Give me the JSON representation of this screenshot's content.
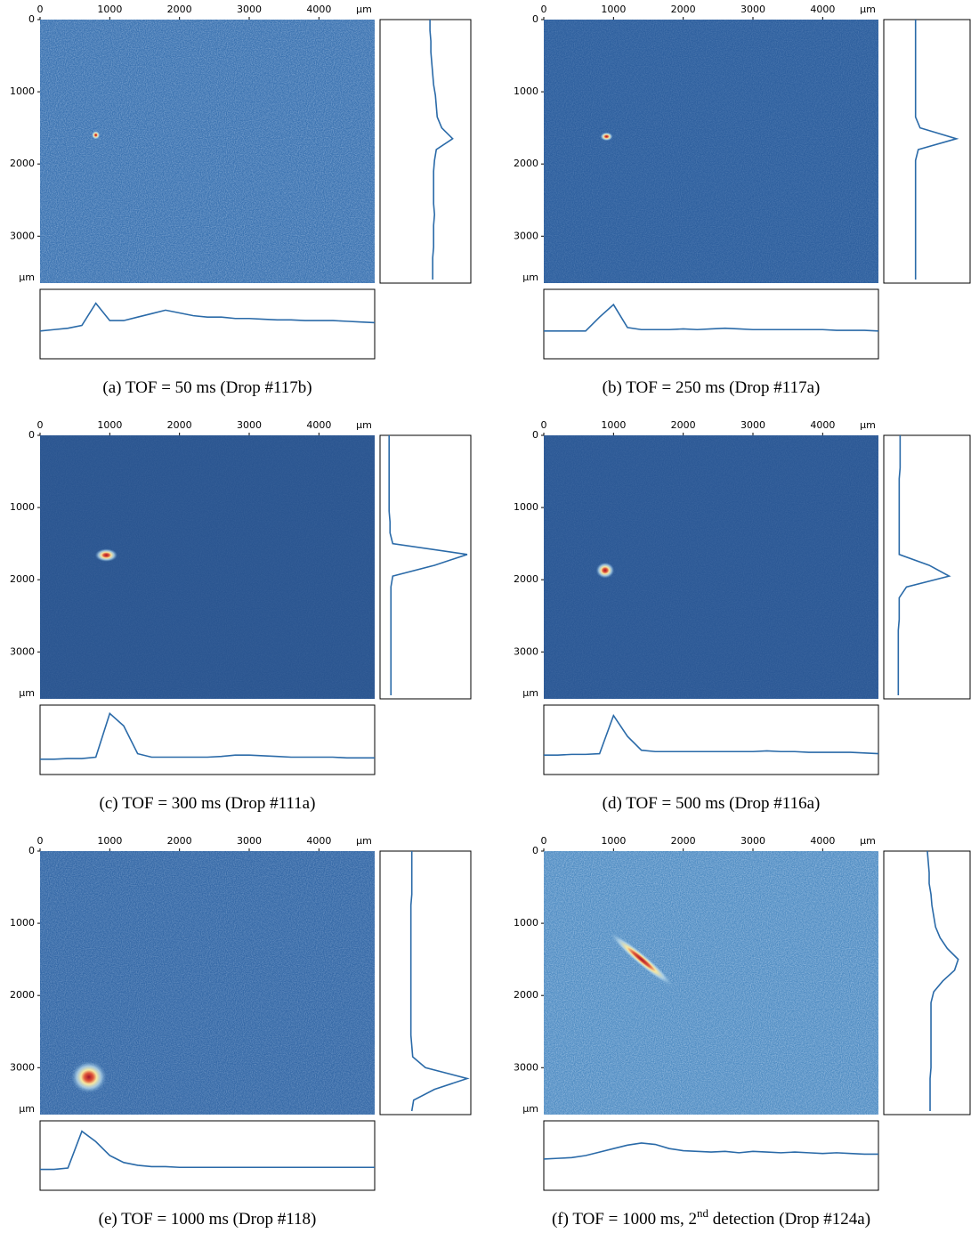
{
  "chart_data": [
    {
      "type": "image-profile",
      "caption": "(a) TOF = 50 ms (Drop #117b)",
      "background": "#3a72b0",
      "texture": 0.45,
      "spot": {
        "x": 800,
        "y": 1600,
        "rx": 60,
        "ry": 60,
        "angle": 0
      },
      "row_profile": {
        "x": [
          0,
          200,
          400,
          600,
          800,
          1000,
          1200,
          1400,
          1600,
          1800,
          2000,
          2200,
          2400,
          2600,
          2800,
          3000,
          3200,
          3400,
          3600,
          3800,
          4000,
          4200,
          4400,
          4600,
          4800
        ],
        "values": [
          40,
          42,
          44,
          48,
          80,
          55,
          55,
          60,
          65,
          70,
          66,
          62,
          60,
          60,
          58,
          58,
          57,
          56,
          56,
          55,
          55,
          55,
          54,
          53,
          52
        ]
      },
      "col_profile": {
        "y": [
          0,
          150,
          300,
          450,
          600,
          750,
          900,
          1050,
          1200,
          1350,
          1500,
          1650,
          1800,
          1950,
          2100,
          2250,
          2400,
          2550,
          2700,
          2850,
          3000,
          3150,
          3300,
          3450,
          3600
        ],
        "values": [
          55,
          55,
          56,
          56,
          57,
          58,
          59,
          61,
          62,
          63,
          68,
          80,
          62,
          60,
          59,
          59,
          59,
          59,
          60,
          59,
          59,
          59,
          58,
          58,
          58
        ]
      }
    },
    {
      "type": "image-profile",
      "caption": "(b) TOF = 250 ms (Drop #117a)",
      "background": "#2d5f9e",
      "texture": 0.2,
      "spot": {
        "x": 900,
        "y": 1620,
        "rx": 90,
        "ry": 60,
        "angle": 0
      },
      "row_profile": {
        "x": [
          0,
          200,
          400,
          600,
          800,
          1000,
          1200,
          1400,
          1600,
          1800,
          2000,
          2200,
          2400,
          2600,
          2800,
          3000,
          3200,
          3400,
          3600,
          3800,
          4000,
          4200,
          4400,
          4600,
          4800
        ],
        "values": [
          40,
          40,
          40,
          40,
          60,
          78,
          45,
          42,
          42,
          42,
          43,
          42,
          43,
          44,
          43,
          42,
          42,
          42,
          42,
          42,
          42,
          41,
          41,
          41,
          40
        ]
      },
      "col_profile": {
        "y": [
          0,
          150,
          300,
          450,
          600,
          750,
          900,
          1050,
          1200,
          1350,
          1500,
          1650,
          1800,
          1950,
          2100,
          2250,
          2400,
          2550,
          2700,
          2850,
          3000,
          3150,
          3300,
          3450,
          3600
        ],
        "values": [
          35,
          35,
          35,
          35,
          35,
          35,
          35,
          35,
          35,
          35,
          40,
          80,
          38,
          35,
          35,
          35,
          35,
          35,
          35,
          35,
          35,
          35,
          35,
          35,
          35
        ]
      }
    },
    {
      "type": "image-profile",
      "caption": "(c) TOF = 300 ms (Drop #111a)",
      "background": "#2a5590",
      "texture": 0.08,
      "spot": {
        "x": 950,
        "y": 1660,
        "rx": 160,
        "ry": 90,
        "angle": 0
      },
      "row_profile": {
        "x": [
          0,
          200,
          400,
          600,
          800,
          1000,
          1200,
          1400,
          1600,
          1800,
          2000,
          2200,
          2400,
          2600,
          2800,
          3000,
          3200,
          3400,
          3600,
          3800,
          4000,
          4200,
          4400,
          4600,
          4800
        ],
        "values": [
          22,
          22,
          23,
          23,
          25,
          88,
          70,
          30,
          25,
          25,
          25,
          25,
          25,
          26,
          28,
          28,
          27,
          26,
          25,
          25,
          25,
          25,
          24,
          24,
          24
        ]
      },
      "col_profile": {
        "y": [
          0,
          150,
          300,
          450,
          600,
          750,
          900,
          1050,
          1200,
          1350,
          1500,
          1650,
          1800,
          1950,
          2100,
          2250,
          2400,
          2550,
          2700,
          2850,
          3000,
          3150,
          3300,
          3450,
          3600
        ],
        "values": [
          10,
          10,
          10,
          10,
          10,
          10,
          10,
          10,
          11,
          11,
          14,
          96,
          60,
          14,
          12,
          12,
          12,
          12,
          12,
          12,
          12,
          12,
          12,
          12,
          12
        ]
      }
    },
    {
      "type": "image-profile",
      "caption": "(d) TOF = 500 ms (Drop #116a)",
      "background": "#2b5895",
      "texture": 0.1,
      "spot": {
        "x": 880,
        "y": 1870,
        "rx": 130,
        "ry": 110,
        "angle": 0
      },
      "row_profile": {
        "x": [
          0,
          200,
          400,
          600,
          800,
          1000,
          1200,
          1400,
          1600,
          1800,
          2000,
          2200,
          2400,
          2600,
          2800,
          3000,
          3200,
          3400,
          3600,
          3800,
          4000,
          4200,
          4400,
          4600,
          4800
        ],
        "values": [
          28,
          28,
          29,
          29,
          30,
          85,
          55,
          35,
          33,
          33,
          33,
          33,
          33,
          33,
          33,
          33,
          34,
          33,
          33,
          32,
          32,
          32,
          32,
          31,
          30
        ]
      },
      "col_profile": {
        "y": [
          0,
          150,
          300,
          450,
          600,
          750,
          900,
          1050,
          1200,
          1350,
          1500,
          1650,
          1800,
          1950,
          2100,
          2250,
          2400,
          2550,
          2700,
          2850,
          3000,
          3150,
          3300,
          3450,
          3600
        ],
        "values": [
          18,
          18,
          18,
          18,
          17,
          17,
          17,
          17,
          17,
          17,
          17,
          17,
          50,
          72,
          25,
          17,
          17,
          17,
          16,
          16,
          16,
          16,
          16,
          16,
          16
        ]
      }
    },
    {
      "type": "image-profile",
      "caption": "(e) TOF = 1000 ms (Drop #118)",
      "background": "#3468a6",
      "texture": 0.35,
      "spot": {
        "x": 700,
        "y": 3130,
        "rx": 250,
        "ry": 220,
        "angle": 0
      },
      "row_profile": {
        "x": [
          0,
          200,
          400,
          600,
          800,
          1000,
          1200,
          1400,
          1600,
          1800,
          2000,
          2200,
          2400,
          2600,
          2800,
          3000,
          3200,
          3400,
          3600,
          3800,
          4000,
          4200,
          4400,
          4600,
          4800
        ],
        "values": [
          30,
          30,
          32,
          85,
          70,
          50,
          40,
          36,
          34,
          34,
          33,
          33,
          33,
          33,
          33,
          33,
          33,
          33,
          33,
          33,
          33,
          33,
          33,
          33,
          33
        ]
      },
      "col_profile": {
        "y": [
          0,
          150,
          300,
          450,
          600,
          750,
          900,
          1050,
          1200,
          1350,
          1500,
          1650,
          1800,
          1950,
          2100,
          2250,
          2400,
          2550,
          2700,
          2850,
          3000,
          3150,
          3300,
          3450,
          3600
        ],
        "values": [
          35,
          35,
          35,
          35,
          35,
          34,
          34,
          34,
          34,
          34,
          34,
          34,
          34,
          34,
          34,
          34,
          34,
          34,
          35,
          36,
          50,
          96,
          60,
          37,
          35
        ]
      }
    },
    {
      "type": "image-profile",
      "caption": "(f) TOF = 1000 ms, 2",
      "caption_sup": "nd",
      "caption_end": " detection (Drop #124a)",
      "background": "#4f8cc2",
      "texture": 0.55,
      "spot": {
        "x": 1400,
        "y": 1500,
        "rx": 600,
        "ry": 80,
        "angle": 40
      },
      "row_profile": {
        "x": [
          0,
          200,
          400,
          600,
          800,
          1000,
          1200,
          1400,
          1600,
          1800,
          2000,
          2200,
          2400,
          2600,
          2800,
          3000,
          3200,
          3400,
          3600,
          3800,
          4000,
          4200,
          4400,
          4600,
          4800
        ],
        "values": [
          45,
          46,
          47,
          50,
          55,
          60,
          65,
          68,
          66,
          60,
          57,
          56,
          55,
          56,
          54,
          56,
          55,
          54,
          55,
          54,
          53,
          54,
          53,
          52,
          52
        ]
      },
      "col_profile": {
        "y": [
          0,
          150,
          300,
          450,
          600,
          750,
          900,
          1050,
          1200,
          1350,
          1500,
          1650,
          1800,
          1950,
          2100,
          2250,
          2400,
          2550,
          2700,
          2850,
          3000,
          3150,
          3300,
          3450,
          3600
        ],
        "values": [
          48,
          49,
          50,
          50,
          52,
          53,
          55,
          57,
          62,
          70,
          82,
          78,
          65,
          55,
          52,
          52,
          52,
          52,
          52,
          52,
          52,
          51,
          51,
          51,
          51
        ]
      }
    }
  ],
  "axes": {
    "unit": "µm",
    "xlim": [
      0,
      4800
    ],
    "ylim": [
      0,
      3650
    ],
    "xticks": [
      0,
      1000,
      2000,
      3000,
      4000
    ],
    "yticks": [
      0,
      1000,
      2000,
      3000
    ],
    "line_color": "#2a6aa8"
  }
}
